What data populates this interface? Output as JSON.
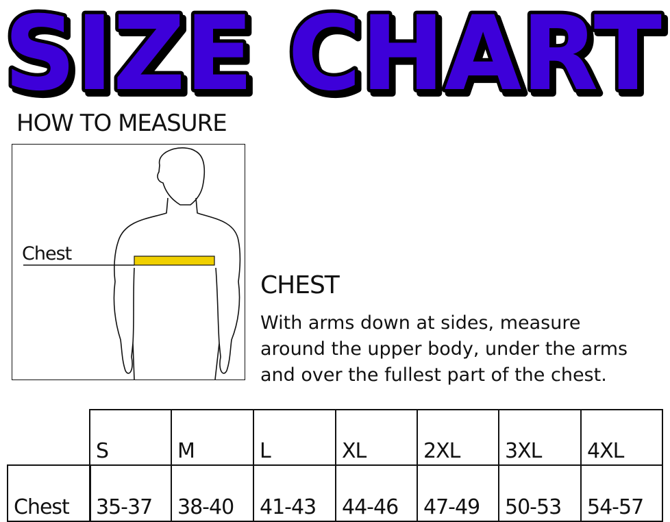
{
  "title": "SIZE CHART",
  "title_color": "#3d00d9",
  "how_to_measure": "HOW TO MEASURE",
  "figure": {
    "label": "Chest",
    "tape_color": "#f0d000"
  },
  "section": {
    "heading": "CHEST",
    "description_lines": [
      "With arms down at sides, measure",
      "around the upper body, under the arms",
      "and over the fullest part of the chest."
    ]
  },
  "table": {
    "sizes": [
      "S",
      "M",
      "L",
      "XL",
      "2XL",
      "3XL",
      "4XL"
    ],
    "row_label": "Chest",
    "values": [
      "35-37",
      "38-40",
      "41-43",
      "44-46",
      "47-49",
      "50-53",
      "54-57"
    ]
  }
}
